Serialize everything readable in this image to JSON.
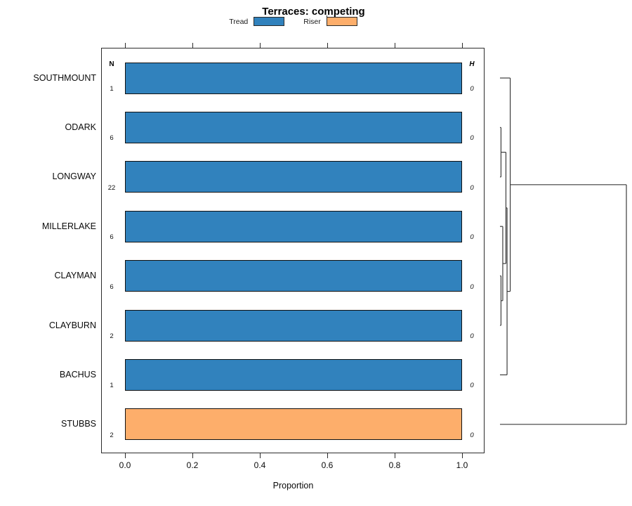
{
  "title": "Terraces: competing",
  "legend": [
    {
      "label": "Tread",
      "color": "#3182bd"
    },
    {
      "label": "Riser",
      "color": "#fdae6b"
    }
  ],
  "columns": {
    "n_header": "N",
    "h_header": "H"
  },
  "axis": {
    "label": "Proportion",
    "ticks": [
      "0.0",
      "0.2",
      "0.4",
      "0.6",
      "0.8",
      "1.0"
    ],
    "tick_values": [
      0.0,
      0.2,
      0.4,
      0.6,
      0.8,
      1.0
    ]
  },
  "chart_data": {
    "type": "bar",
    "orientation": "horizontal",
    "stacked": true,
    "title": "Terraces: competing",
    "xlabel": "Proportion",
    "xlim": [
      0,
      1
    ],
    "grid": false,
    "legend_position": "top",
    "categories": [
      "SOUTHMOUNT",
      "ODARK",
      "LONGWAY",
      "MILLERLAKE",
      "CLAYMAN",
      "CLAYBURN",
      "BACHUS",
      "STUBBS"
    ],
    "series": [
      {
        "name": "Tread",
        "color": "#3182bd",
        "values": [
          1,
          1,
          1,
          1,
          1,
          1,
          1,
          0
        ]
      },
      {
        "name": "Riser",
        "color": "#fdae6b",
        "values": [
          0,
          0,
          0,
          0,
          0,
          0,
          0,
          1
        ]
      }
    ],
    "n_values": [
      "1",
      "6",
      "22",
      "6",
      "6",
      "2",
      "1",
      "2"
    ],
    "h_values": [
      "0",
      "0",
      "0",
      "0",
      "0",
      "0",
      "0",
      "0"
    ]
  },
  "dendrogram": {
    "description": "hierarchical clustering of rows, heights normalized 0-1",
    "merges": [
      {
        "id": "n1",
        "a": "ODARK",
        "b": "LONGWAY",
        "height": 0.008
      },
      {
        "id": "n2",
        "a": "CLAYMAN",
        "b": "CLAYBURN",
        "height": 0.008
      },
      {
        "id": "n3",
        "a": "MILLERLAKE",
        "b": "n2",
        "height": 0.022
      },
      {
        "id": "n4",
        "a": "n1",
        "b": "n3",
        "height": 0.047
      },
      {
        "id": "n5",
        "a": "n4",
        "b": "BACHUS",
        "height": 0.056
      },
      {
        "id": "n6",
        "a": "SOUTHMOUNT",
        "b": "n5",
        "height": 0.081
      },
      {
        "id": "n7",
        "a": "n6",
        "b": "STUBBS",
        "height": 1.0
      }
    ]
  }
}
